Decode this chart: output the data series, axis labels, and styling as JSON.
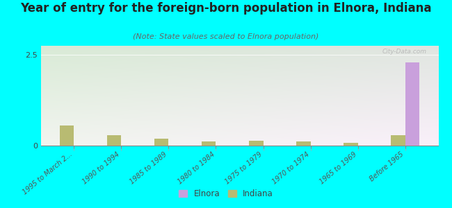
{
  "title": "Year of entry for the foreign-born population in Elnora, Indiana",
  "subtitle": "(Note: State values scaled to Elnora population)",
  "categories": [
    "1995 to March 2...",
    "1990 to 1994",
    "1985 to 1989",
    "1980 to 1984",
    "1975 to 1979",
    "1970 to 1974",
    "1965 to 1969",
    "Before 1965"
  ],
  "elnora_values": [
    0,
    0,
    0,
    0,
    0,
    0,
    0,
    2.3
  ],
  "indiana_values": [
    0.55,
    0.28,
    0.2,
    0.12,
    0.13,
    0.12,
    0.07,
    0.28
  ],
  "elnora_color": "#c9a0dc",
  "indiana_color": "#b8bb72",
  "background_color": "#00ffff",
  "plot_bg_color_tl": "#d8ecd0",
  "plot_bg_color_tr": "#e8f0d8",
  "plot_bg_color_bl": "#f0f5e8",
  "plot_bg_color_br": "#f8f8ee",
  "ylim": [
    0,
    2.75
  ],
  "yticks": [
    0,
    2.5
  ],
  "bar_width": 0.3,
  "title_fontsize": 12,
  "subtitle_fontsize": 8,
  "watermark": "City-Data.com"
}
